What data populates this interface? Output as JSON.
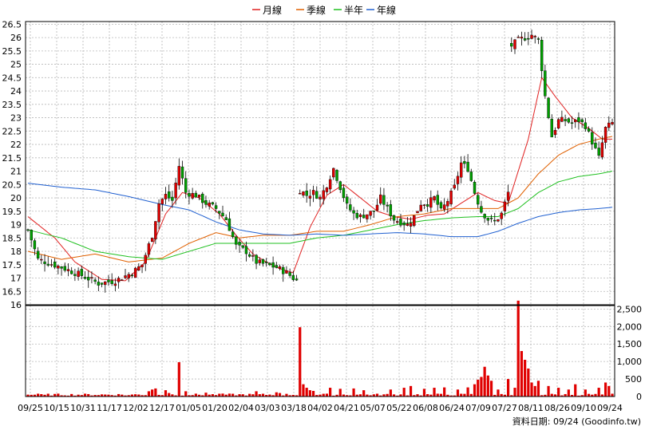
{
  "chart_data": [
    {
      "type": "candlestick",
      "panel": "price",
      "legend": [
        {
          "name": "月線",
          "color": "#e02020"
        },
        {
          "name": "季線",
          "color": "#e06000"
        },
        {
          "name": "半年",
          "color": "#20c020"
        },
        {
          "name": "年線",
          "color": "#2060d0"
        }
      ],
      "colors": {
        "up": "#e00000",
        "down": "#00a000",
        "grid": "#b8b8b8",
        "frame": "#000000"
      },
      "grid": true,
      "ylim": [
        16,
        26.6
      ],
      "y_ticks": [
        "26.5",
        "26",
        "25.5",
        "25",
        "24.5",
        "24",
        "23.5",
        "23",
        "22.5",
        "22",
        "21.5",
        "21",
        "20.5",
        "20",
        "19.5",
        "19",
        "18.5",
        "18",
        "17.5",
        "17",
        "16.5",
        "16"
      ],
      "x_ticks": [
        "09/25",
        "10/15",
        "10/31",
        "11/17",
        "12/02",
        "12/17",
        "01/05",
        "01/20",
        "02/04",
        "03/03",
        "03/18",
        "04/02",
        "04/21",
        "05/07",
        "05/22",
        "06/08",
        "06/24",
        "07/09",
        "07/27",
        "08/11",
        "08/26",
        "09/10",
        "09/24"
      ],
      "close_anchors": [
        [
          0,
          18.8
        ],
        [
          3,
          17.7
        ],
        [
          10,
          17.4
        ],
        [
          16,
          17.1
        ],
        [
          21,
          16.8
        ],
        [
          26,
          16.9
        ],
        [
          31,
          17.2
        ],
        [
          34,
          17.5
        ],
        [
          37,
          18.6
        ],
        [
          39,
          19.8
        ],
        [
          41,
          20.1
        ],
        [
          43,
          19.9
        ],
        [
          45,
          21.2
        ],
        [
          47,
          20.2
        ],
        [
          50,
          20.1
        ],
        [
          53,
          19.8
        ],
        [
          56,
          19.6
        ],
        [
          59,
          19.2
        ],
        [
          62,
          18.2
        ],
        [
          65,
          18.0
        ],
        [
          68,
          17.6
        ],
        [
          71,
          17.5
        ],
        [
          74,
          17.4
        ],
        [
          77,
          17.2
        ],
        [
          80,
          16.9
        ],
        [
          81,
          20.3
        ],
        [
          83,
          20.1
        ],
        [
          85,
          20.2
        ],
        [
          87,
          20.0
        ],
        [
          89,
          20.5
        ],
        [
          91,
          21.1
        ],
        [
          93,
          20.4
        ],
        [
          95,
          19.7
        ],
        [
          97,
          19.4
        ],
        [
          99,
          19.3
        ],
        [
          101,
          19.4
        ],
        [
          103,
          19.5
        ],
        [
          105,
          20.0
        ],
        [
          107,
          19.6
        ],
        [
          109,
          19.2
        ],
        [
          111,
          19.1
        ],
        [
          113,
          19.0
        ],
        [
          115,
          19.3
        ],
        [
          117,
          19.8
        ],
        [
          119,
          19.8
        ],
        [
          121,
          20.0
        ],
        [
          123,
          19.5
        ],
        [
          125,
          19.9
        ],
        [
          127,
          20.4
        ],
        [
          129,
          21.3
        ],
        [
          131,
          21.1
        ],
        [
          133,
          20.2
        ],
        [
          135,
          19.5
        ],
        [
          137,
          19.2
        ],
        [
          139,
          19.1
        ],
        [
          141,
          19.4
        ],
        [
          143,
          20.2
        ],
        [
          144,
          25.7
        ],
        [
          146,
          25.9
        ],
        [
          148,
          26.0
        ],
        [
          150,
          26.1
        ],
        [
          152,
          25.9
        ],
        [
          154,
          23.8
        ],
        [
          156,
          22.3
        ],
        [
          158,
          22.9
        ],
        [
          160,
          22.9
        ],
        [
          162,
          22.8
        ],
        [
          164,
          22.9
        ],
        [
          166,
          22.7
        ],
        [
          168,
          22.1
        ],
        [
          170,
          21.5
        ],
        [
          172,
          22.6
        ],
        [
          174,
          22.8
        ]
      ],
      "moving_averages": {
        "月線": [
          [
            0,
            19.3
          ],
          [
            8,
            18.5
          ],
          [
            14,
            17.6
          ],
          [
            22,
            16.95
          ],
          [
            29,
            16.9
          ],
          [
            35,
            17.6
          ],
          [
            41,
            19.4
          ],
          [
            46,
            20.2
          ],
          [
            51,
            20.0
          ],
          [
            57,
            19.4
          ],
          [
            62,
            18.6
          ],
          [
            67,
            17.9
          ],
          [
            71,
            17.6
          ],
          [
            75,
            17.35
          ],
          [
            79,
            17.2
          ],
          [
            84,
            18.9
          ],
          [
            89,
            20.1
          ],
          [
            94,
            20.5
          ],
          [
            99,
            20.0
          ],
          [
            104,
            19.5
          ],
          [
            109,
            19.3
          ],
          [
            114,
            19.2
          ],
          [
            119,
            19.35
          ],
          [
            124,
            19.4
          ],
          [
            129,
            19.8
          ],
          [
            134,
            20.2
          ],
          [
            139,
            19.9
          ],
          [
            143,
            19.8
          ],
          [
            149,
            22.2
          ],
          [
            153,
            24.5
          ],
          [
            157,
            23.8
          ],
          [
            162,
            23.0
          ],
          [
            167,
            22.6
          ],
          [
            171,
            22.2
          ],
          [
            174,
            22.2
          ]
        ],
        "季線": [
          [
            0,
            18.0
          ],
          [
            10,
            17.7
          ],
          [
            20,
            17.9
          ],
          [
            30,
            17.6
          ],
          [
            40,
            17.75
          ],
          [
            48,
            18.3
          ],
          [
            56,
            18.7
          ],
          [
            63,
            18.5
          ],
          [
            70,
            18.6
          ],
          [
            78,
            18.6
          ],
          [
            86,
            18.75
          ],
          [
            94,
            18.75
          ],
          [
            102,
            19.0
          ],
          [
            110,
            19.3
          ],
          [
            118,
            19.4
          ],
          [
            126,
            19.6
          ],
          [
            134,
            19.6
          ],
          [
            140,
            19.6
          ],
          [
            146,
            20.0
          ],
          [
            152,
            20.9
          ],
          [
            158,
            21.6
          ],
          [
            164,
            22.0
          ],
          [
            170,
            22.2
          ],
          [
            174,
            22.3
          ]
        ],
        "半年": [
          [
            0,
            18.8
          ],
          [
            10,
            18.5
          ],
          [
            20,
            18.0
          ],
          [
            30,
            17.8
          ],
          [
            40,
            17.7
          ],
          [
            48,
            18.0
          ],
          [
            56,
            18.3
          ],
          [
            63,
            18.3
          ],
          [
            70,
            18.3
          ],
          [
            78,
            18.3
          ],
          [
            86,
            18.5
          ],
          [
            94,
            18.6
          ],
          [
            102,
            18.8
          ],
          [
            110,
            19.0
          ],
          [
            118,
            19.15
          ],
          [
            126,
            19.25
          ],
          [
            134,
            19.3
          ],
          [
            140,
            19.3
          ],
          [
            146,
            19.6
          ],
          [
            152,
            20.2
          ],
          [
            158,
            20.6
          ],
          [
            164,
            20.8
          ],
          [
            170,
            20.9
          ],
          [
            174,
            21.0
          ]
        ],
        "年線": [
          [
            0,
            20.55
          ],
          [
            10,
            20.4
          ],
          [
            20,
            20.3
          ],
          [
            30,
            20.05
          ],
          [
            40,
            19.75
          ],
          [
            48,
            19.55
          ],
          [
            56,
            19.1
          ],
          [
            63,
            18.8
          ],
          [
            70,
            18.65
          ],
          [
            78,
            18.6
          ],
          [
            86,
            18.65
          ],
          [
            94,
            18.6
          ],
          [
            102,
            18.65
          ],
          [
            110,
            18.7
          ],
          [
            118,
            18.65
          ],
          [
            126,
            18.55
          ],
          [
            134,
            18.55
          ],
          [
            140,
            18.75
          ],
          [
            146,
            19.05
          ],
          [
            152,
            19.3
          ],
          [
            158,
            19.45
          ],
          [
            164,
            19.55
          ],
          [
            170,
            19.6
          ],
          [
            174,
            19.65
          ]
        ]
      }
    },
    {
      "type": "bar",
      "panel": "volume",
      "color": "#e00000",
      "ylim": [
        0,
        2600
      ],
      "y_ticks": [
        "2,500",
        "2,000",
        "1,500",
        "1,000",
        "500",
        "0"
      ],
      "spikes": [
        [
          5,
          50
        ],
        [
          29,
          30
        ],
        [
          36,
          150
        ],
        [
          37,
          200
        ],
        [
          38,
          230
        ],
        [
          41,
          180
        ],
        [
          42,
          100
        ],
        [
          45,
          980
        ],
        [
          47,
          150
        ],
        [
          53,
          110
        ],
        [
          57,
          80
        ],
        [
          68,
          150
        ],
        [
          74,
          120
        ],
        [
          75,
          100
        ],
        [
          81,
          1980
        ],
        [
          82,
          350
        ],
        [
          83,
          250
        ],
        [
          84,
          180
        ],
        [
          85,
          160
        ],
        [
          90,
          250
        ],
        [
          93,
          220
        ],
        [
          97,
          230
        ],
        [
          100,
          180
        ],
        [
          108,
          200
        ],
        [
          112,
          250
        ],
        [
          114,
          300
        ],
        [
          118,
          220
        ],
        [
          121,
          250
        ],
        [
          124,
          260
        ],
        [
          128,
          200
        ],
        [
          131,
          260
        ],
        [
          133,
          350
        ],
        [
          134,
          480
        ],
        [
          135,
          560
        ],
        [
          136,
          850
        ],
        [
          137,
          600
        ],
        [
          138,
          450
        ],
        [
          140,
          200
        ],
        [
          143,
          500
        ],
        [
          145,
          250
        ],
        [
          146,
          2740
        ],
        [
          147,
          1300
        ],
        [
          148,
          1050
        ],
        [
          149,
          800
        ],
        [
          150,
          400
        ],
        [
          151,
          300
        ],
        [
          152,
          450
        ],
        [
          155,
          300
        ],
        [
          158,
          250
        ],
        [
          161,
          200
        ],
        [
          163,
          350
        ],
        [
          166,
          200
        ],
        [
          170,
          250
        ],
        [
          172,
          400
        ],
        [
          173,
          300
        ]
      ],
      "base_volume": 60
    }
  ],
  "footer": {
    "caption": "資料日期: 09/24  (Goodinfo.tw)"
  }
}
